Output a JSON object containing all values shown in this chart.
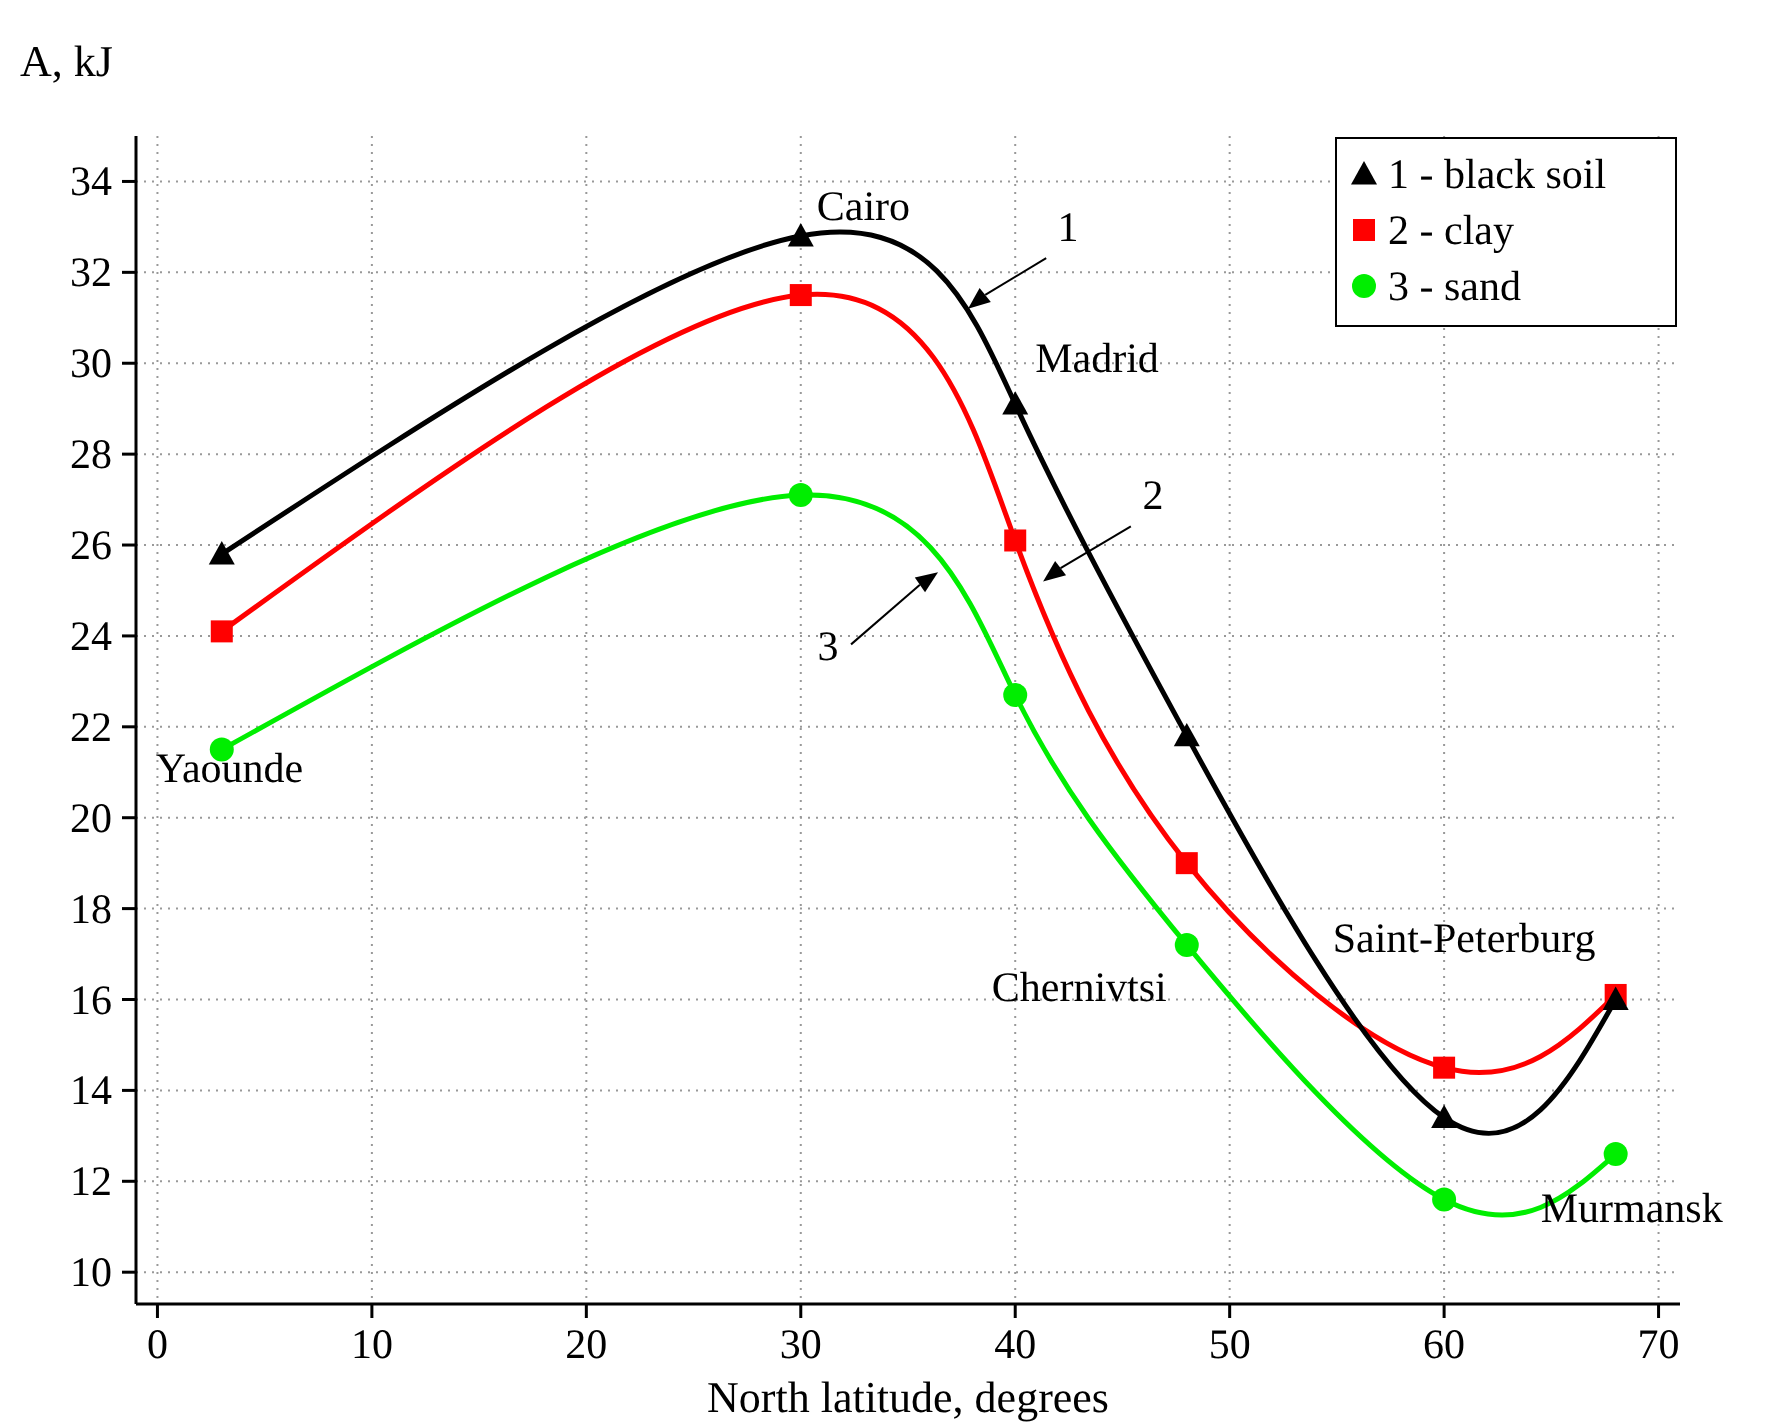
{
  "chart_data": {
    "type": "line",
    "xlabel": "North latitude, degrees",
    "ylabel": "A, kJ",
    "x": [
      3,
      30,
      40,
      48,
      60,
      68
    ],
    "series": [
      {
        "name": "1 - black soil",
        "color": "#000000",
        "marker": "triangle",
        "values": [
          25.8,
          32.8,
          29.1,
          21.8,
          13.4,
          16.0
        ]
      },
      {
        "name": "2 - clay",
        "color": "#ff0000",
        "marker": "square",
        "values": [
          24.1,
          31.5,
          26.1,
          19.0,
          14.5,
          16.1
        ]
      },
      {
        "name": "3 - sand",
        "color": "#00ee00",
        "marker": "circle",
        "values": [
          21.5,
          27.1,
          22.7,
          17.2,
          11.6,
          12.6
        ]
      }
    ],
    "xlim": [
      -1,
      71
    ],
    "xticks": [
      0,
      10,
      20,
      30,
      40,
      50,
      60,
      70
    ],
    "ylim": [
      9.3,
      35
    ],
    "yticks": [
      10,
      12,
      14,
      16,
      18,
      20,
      22,
      24,
      26,
      28,
      30,
      32,
      34
    ],
    "grid": true,
    "legend": "top right",
    "line_style": "solid",
    "annotations": [
      {
        "text": "Cairo",
        "x": 30,
        "y": 32.8
      },
      {
        "text": "Madrid",
        "x": 40,
        "y": 29.1
      },
      {
        "text": "Yaounde",
        "x": 3,
        "y": 21.5
      },
      {
        "text": "Chernivtsi",
        "x": 48,
        "y": 17.2
      },
      {
        "text": "Saint-Peterburg",
        "x": 60,
        "y": 14.5
      },
      {
        "text": "Murmansk",
        "x": 68,
        "y": 12.6
      },
      {
        "text": "1",
        "x": 37.8,
        "y": 31.2
      },
      {
        "text": "2",
        "x": 41.3,
        "y": 25.2
      },
      {
        "text": "3",
        "x": 36.4,
        "y": 25.4
      }
    ]
  }
}
